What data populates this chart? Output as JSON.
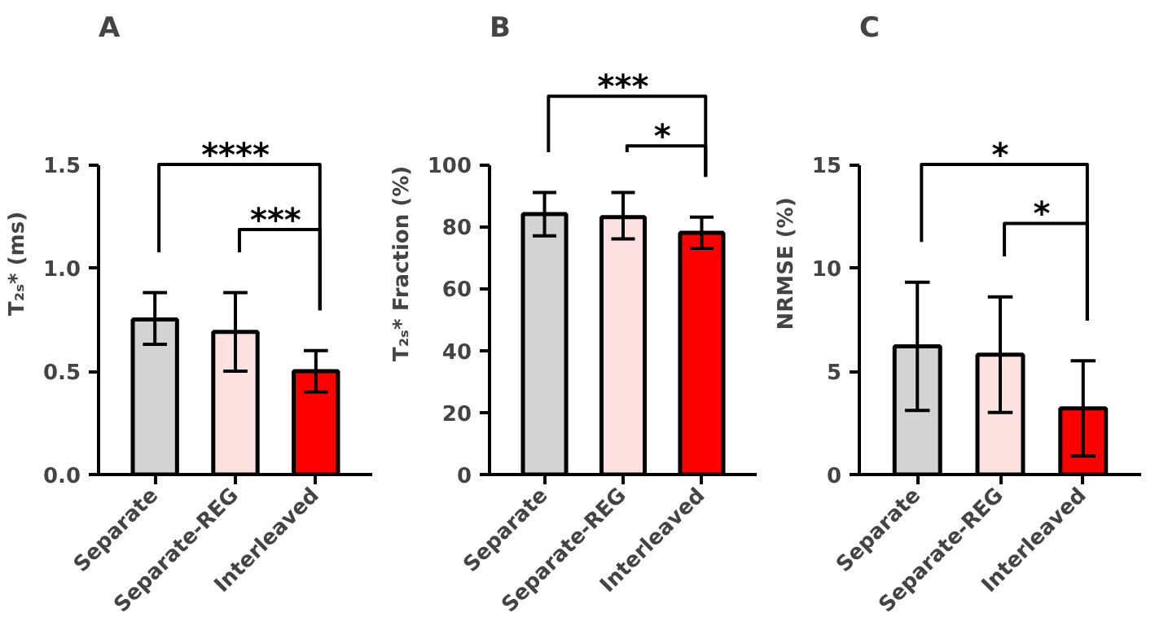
{
  "chart_data": [
    {
      "type": "bar",
      "title": "A",
      "ylabel": "T₂ₛ* (ms)",
      "categories": [
        "Separate",
        "Separate-REG",
        "Interleaved"
      ],
      "values": [
        0.75,
        0.69,
        0.5
      ],
      "colors": [
        "#d3d3d3",
        "#fde0e0",
        "#ff0000"
      ],
      "errors": [
        [
          0.63,
          0.88
        ],
        [
          0.5,
          0.88
        ],
        [
          0.4,
          0.6
        ]
      ],
      "ylim": [
        0,
        1.5
      ],
      "yticks": [
        {
          "value": 0,
          "label": "0.0"
        },
        {
          "value": 0.5,
          "label": "0.5"
        },
        {
          "value": 1.0,
          "label": "1.0"
        },
        {
          "value": 1.5,
          "label": "1.5"
        }
      ],
      "annotations": [
        "****",
        "***"
      ]
    },
    {
      "type": "bar",
      "title": "B",
      "ylabel": "T₂ₛ* Fraction (%)",
      "categories": [
        "Separate",
        "Separate-REG",
        "Interleaved"
      ],
      "values": [
        84,
        83,
        78
      ],
      "colors": [
        "#d3d3d3",
        "#fde0e0",
        "#ff0000"
      ],
      "errors": [
        [
          77,
          91
        ],
        [
          76,
          91
        ],
        [
          73,
          83
        ]
      ],
      "ylim": [
        0,
        100
      ],
      "yticks": [
        0,
        20,
        40,
        60,
        80,
        100
      ],
      "annotations": [
        "***",
        "*"
      ]
    },
    {
      "type": "bar",
      "title": "C",
      "ylabel": "NRMSE (%)",
      "categories": [
        "Separate",
        "Separate-REG",
        "Interleaved"
      ],
      "values": [
        6.2,
        5.8,
        3.2
      ],
      "colors": [
        "#d3d3d3",
        "#fde0e0",
        "#ff0000"
      ],
      "errors": [
        [
          3.1,
          9.3
        ],
        [
          3.0,
          8.6
        ],
        [
          0.9,
          5.5
        ]
      ],
      "ylim": [
        0,
        15
      ],
      "yticks": [
        0,
        5,
        10,
        15
      ],
      "annotations": [
        "*",
        "*"
      ]
    }
  ]
}
